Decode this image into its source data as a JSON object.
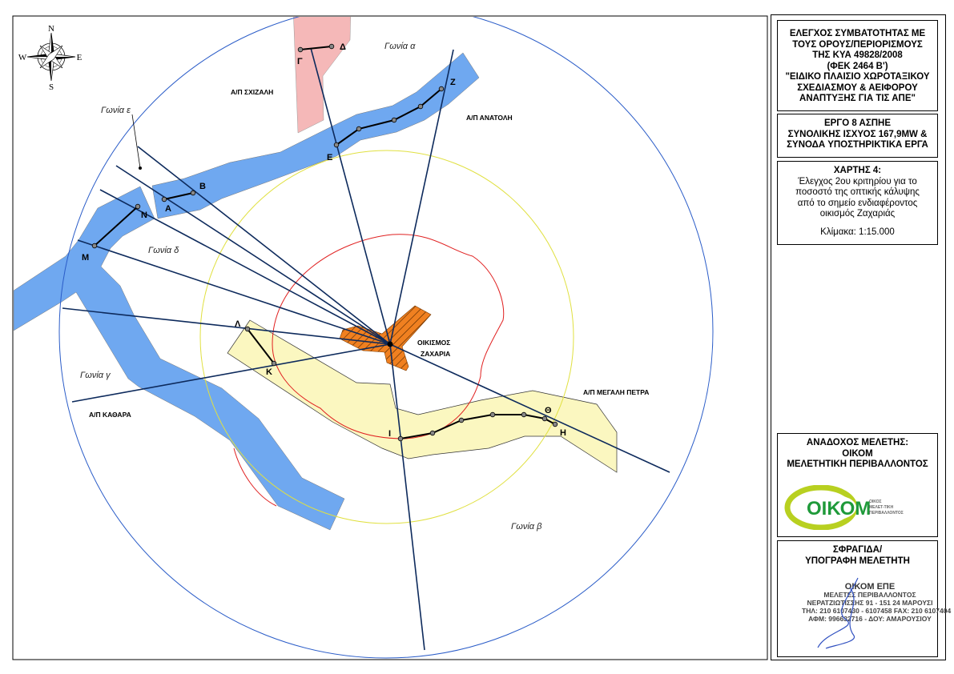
{
  "map": {
    "compass": {
      "n": "N",
      "s": "S",
      "e": "E",
      "w": "W"
    },
    "angle_labels": [
      "Γωνία α",
      "Γωνία β",
      "Γωνία γ",
      "Γωνία δ",
      "Γωνία ε"
    ],
    "wind_parks": [
      "Α/Π ΣΧΙΖΑΛΗ",
      "Α/Π ΑΝΑΤΟΛΗ",
      "Α/Π ΜΕΓΑΛΗ ΠΕΤΡΑ",
      "Α/Π ΚΑΘΑΡΑ"
    ],
    "settlement": [
      "ΟΙΚΙΣΜΟΣ",
      "ΖΑΧΑΡΙΑ"
    ],
    "points": [
      "Α",
      "Β",
      "Γ",
      "Δ",
      "Ε",
      "Ζ",
      "Η",
      "Θ",
      "Ι",
      "Κ",
      "Λ",
      "Μ",
      "Ν"
    ],
    "colors": {
      "wind_band_blue": "#6fa8f0",
      "pink_band": "#f5b8b8",
      "yellow_band": "#fbf7c0",
      "settlement": "#f08020",
      "rays": "#0d2a5c",
      "outer_circle": "#2a5cc8",
      "yellow_circle": "#e0e040",
      "red_contour": "#e02020"
    }
  },
  "panel": {
    "title_lines": [
      "ΕΛΕΓΧΟΣ ΣΥΜΒΑΤΟΤΗΤΑΣ ΜΕ",
      "ΤΟΥΣ ΟΡΟΥΣ/ΠΕΡΙΟΡΙΣΜΟΥΣ",
      "ΤΗΣ ΚΥΑ 49828/2008",
      "(ΦΕΚ 2464 Β')",
      "\"ΕΙΔΙΚΟ ΠΛΑΙΣΙΟ ΧΩΡΟΤΑΞΙΚΟΥ",
      "ΣΧΕΔΙΑΣΜΟΥ & ΑΕΙΦΟΡΟΥ",
      "ΑΝΑΠΤΥΞΗΣ ΓΙΑ ΤΙΣ ΑΠΕ\""
    ],
    "project_lines": [
      "ΕΡΓΟ 8 ΑΣΠΗΕ",
      "ΣΥΝΟΛΙΚΗΣ ΙΣΧΥΟΣ 167,9MW &",
      "ΣΥΝΟΔΑ ΥΠΟΣΤΗΡΙΚΤΙΚΑ ΕΡΓΑ"
    ],
    "map_title": "ΧΑΡΤΗΣ 4:",
    "map_desc_lines": [
      "Έλεγχος 2ου κριτηρίου για το",
      "ποσοστό της οπτικής κάλυψης",
      "από το σημείο ενδιαφέροντος",
      "οικισμός Ζαχαριάς"
    ],
    "scale": "Κλίμακα: 1:15.000",
    "contractor_lines": [
      "ΑΝΑΔΟΧΟΣ ΜΕΛΕΤΗΣ:",
      "ΟΙΚΟΜ",
      "ΜΕΛΕΤΗΤΙΚΗ ΠΕΡΙΒΑΛΛΟΝΤΟΣ"
    ],
    "logo_text": "ΟΙΚΟΜ",
    "logo_sub": [
      "ΟΙΚΟΣ",
      "ΜΕΛΕΤ-ΤΙΚΗ",
      "ΠΕΡΙΒΑΛΛΟΝΤΟΣ"
    ],
    "stamp_heading": [
      "ΣΦΡΑΓΙΔΑ/",
      "ΥΠΟΓΡΑΦΗ ΜΕΛΕΤΗΤΗ"
    ],
    "stamp_lines": [
      "ΟΙΚΟΜ ΕΠΕ",
      "ΜΕΛΕΤΕΣ ΠΕΡΙΒΑΛΛΟΝΤΟΣ",
      "ΝΕΡΑΤΖΙΩΤΙΣΣΗΣ 91 - 151 24 ΜΑΡΟΥΣΙ",
      "ΤΗΛ: 210 6107430 - 6107458 FAX: 210 6107404",
      "ΑΦΜ: 996632716 - ΔΟΥ: ΑΜΑΡΟΥΣΙΟΥ"
    ]
  }
}
